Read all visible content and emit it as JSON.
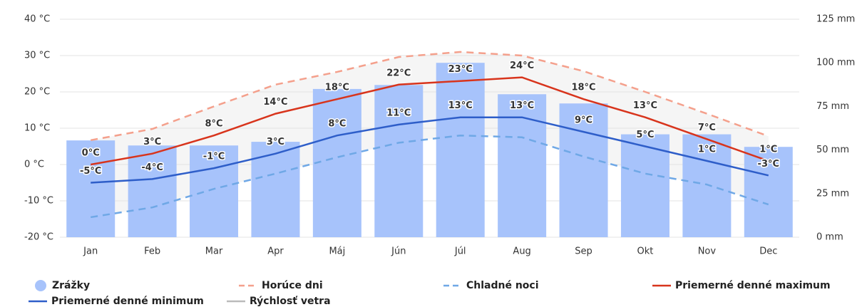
{
  "chart_data": {
    "type": "combo",
    "categories": [
      "Jan",
      "Feb",
      "Mar",
      "Apr",
      "Máj",
      "Jún",
      "Júl",
      "Aug",
      "Sep",
      "Okt",
      "Nov",
      "Dec"
    ],
    "ylim": [
      -20,
      40
    ],
    "yticks": [
      {
        "value": -20,
        "label": "-20 °C"
      },
      {
        "value": -10,
        "label": "-10 °C"
      },
      {
        "value": 0,
        "label": "0 °C"
      },
      {
        "value": 10,
        "label": "10 °C"
      },
      {
        "value": 20,
        "label": "20 °C"
      },
      {
        "value": 30,
        "label": "30 °C"
      },
      {
        "value": 40,
        "label": "40 °C"
      }
    ],
    "y2lim": [
      0,
      125
    ],
    "y2ticks": [
      {
        "value": 0,
        "label": "0 mm"
      },
      {
        "value": 25,
        "label": "25 mm"
      },
      {
        "value": 50,
        "label": "50 mm"
      },
      {
        "value": 75,
        "label": "75 mm"
      },
      {
        "value": 100,
        "label": "100 mm"
      },
      {
        "value": 125,
        "label": "125 mm"
      }
    ],
    "grid": true,
    "series": [
      {
        "name": "Zrážky",
        "type": "bar",
        "axis": "y2",
        "color": "#a7c3fb",
        "values": [
          55.5,
          52.6,
          52.6,
          54.7,
          85,
          87.3,
          100,
          82,
          76.7,
          59,
          59,
          51.8
        ]
      },
      {
        "name": "Horúce dni",
        "type": "line",
        "dash": true,
        "color": "#f4a08c",
        "values": [
          6.7,
          9.8,
          16,
          22,
          25.5,
          29.6,
          31,
          30,
          25.7,
          20,
          14,
          7.8
        ]
      },
      {
        "name": "Chladné noci",
        "type": "line",
        "dash": true,
        "color": "#6fa8e6",
        "values": [
          -14.5,
          -11.8,
          -6.7,
          -2.5,
          2,
          6,
          8,
          7.5,
          2.2,
          -2.5,
          -5.5,
          -11
        ]
      },
      {
        "name": "Priemerné denné maximum",
        "type": "line",
        "color": "#d8341c",
        "values": [
          0,
          3,
          8,
          14,
          18,
          22,
          23,
          24,
          18,
          13,
          7,
          1
        ],
        "value_labels": [
          "0°C",
          "3°C",
          "8°C",
          "14°C",
          "18°C",
          "22°C",
          "23°C",
          "24°C",
          "18°C",
          "13°C",
          "7°C",
          "1°C"
        ]
      },
      {
        "name": "Priemerné denné minimum",
        "type": "line",
        "color": "#2e5ec9",
        "values": [
          -5,
          -4,
          -1,
          3,
          8,
          11,
          13,
          13,
          9,
          5,
          1,
          -3
        ],
        "value_labels": [
          "-5°C",
          "-4°C",
          "-1°C",
          "3°C",
          "8°C",
          "11°C",
          "13°C",
          "13°C",
          "9°C",
          "5°C",
          "1°C",
          "-3°C"
        ]
      },
      {
        "name": "Rýchlosť vetra",
        "type": "line",
        "hidden": true,
        "color": "#aaaaaa"
      }
    ]
  }
}
